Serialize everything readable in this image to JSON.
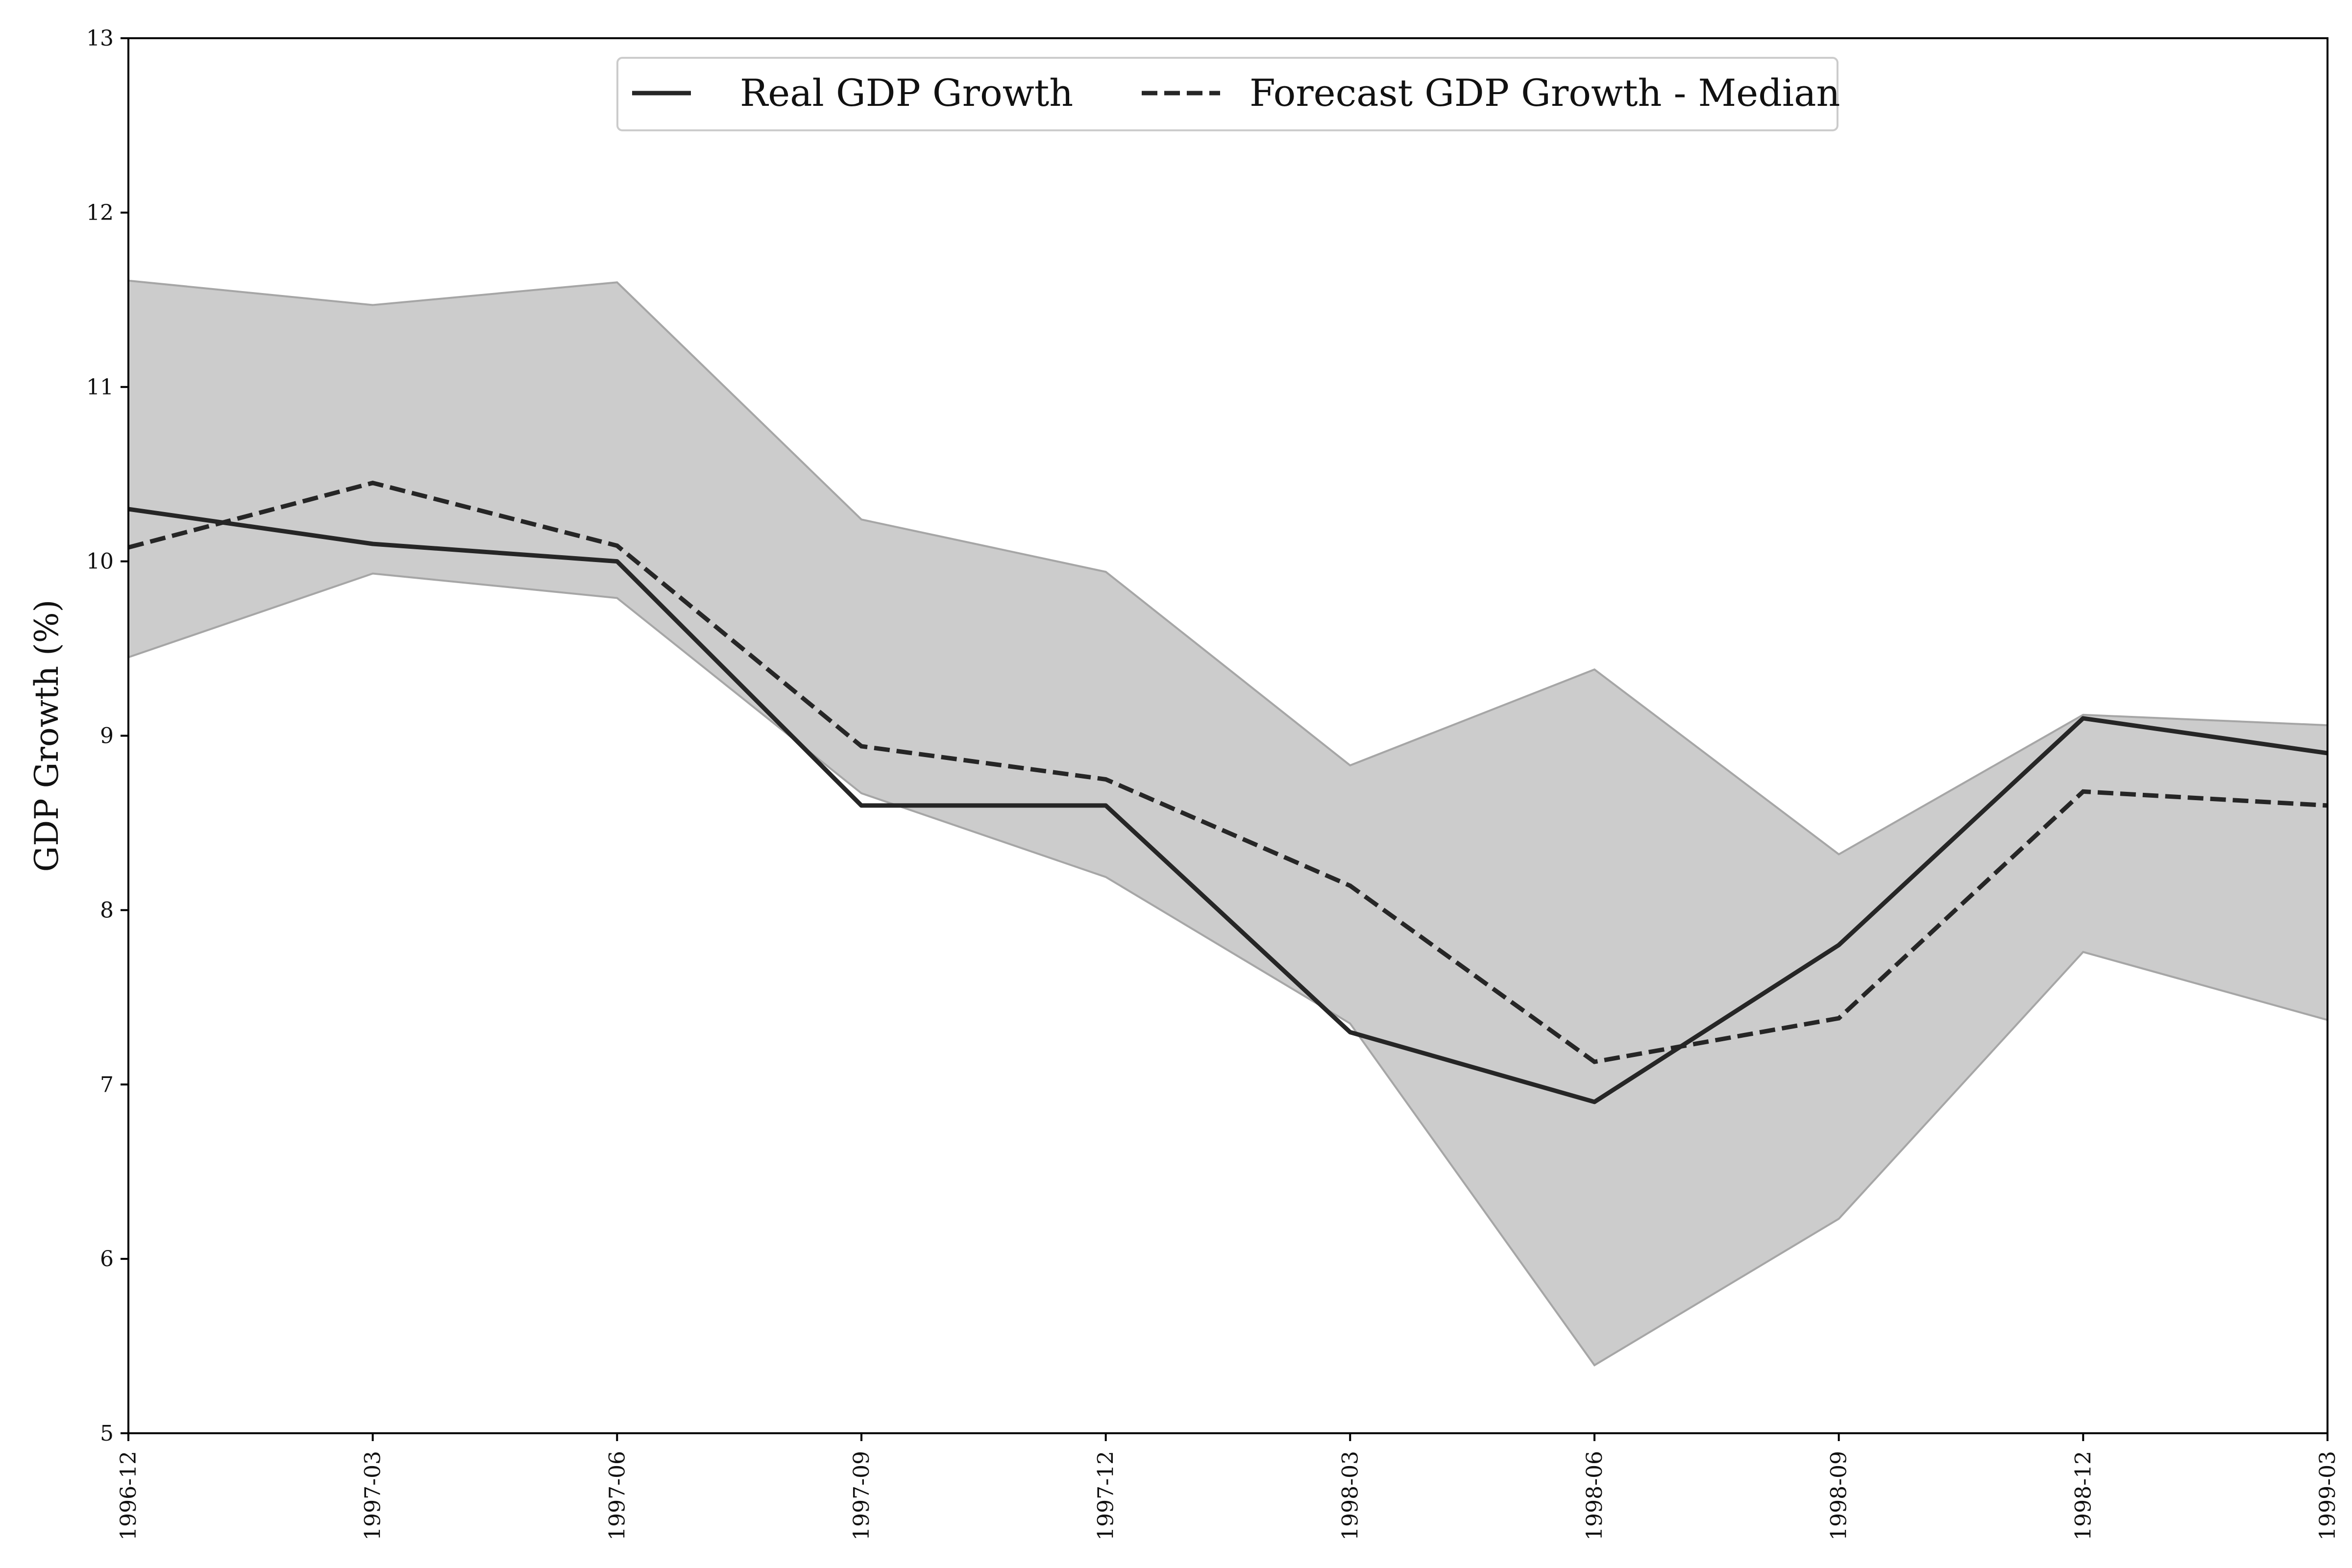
{
  "chart_data": {
    "type": "line",
    "title": "",
    "xlabel": "",
    "ylabel": "GDP Growth (%)",
    "ylim": [
      5,
      13
    ],
    "yticks": [
      5,
      6,
      7,
      8,
      9,
      10,
      11,
      12,
      13
    ],
    "grid": false,
    "legend_position": "top-center",
    "categories": [
      "1996-12",
      "1997-03",
      "1997-06",
      "1997-09",
      "1997-12",
      "1998-03",
      "1998-06",
      "1998-09",
      "1998-12",
      "1999-03"
    ],
    "series": [
      {
        "name": "Real GDP Growth",
        "style": "solid",
        "values": [
          10.3,
          10.1,
          10.0,
          8.6,
          8.6,
          7.3,
          6.9,
          7.8,
          9.1,
          8.9
        ]
      },
      {
        "name": "Forecast GDP Growth - Median",
        "style": "dashed",
        "values": [
          10.08,
          10.45,
          10.09,
          8.94,
          8.75,
          8.14,
          7.13,
          7.38,
          8.68,
          8.6
        ]
      }
    ],
    "band": {
      "upper": [
        11.61,
        11.47,
        11.6,
        10.24,
        9.94,
        8.83,
        9.38,
        8.32,
        9.12,
        9.06
      ],
      "lower": [
        9.45,
        9.93,
        9.79,
        8.67,
        8.19,
        7.35,
        5.39,
        6.23,
        7.76,
        7.37
      ]
    },
    "colors": {
      "line": "#262626",
      "band_fill": "#cccccc",
      "band_edge": "#a6a6a6",
      "axis": "#000000"
    }
  }
}
